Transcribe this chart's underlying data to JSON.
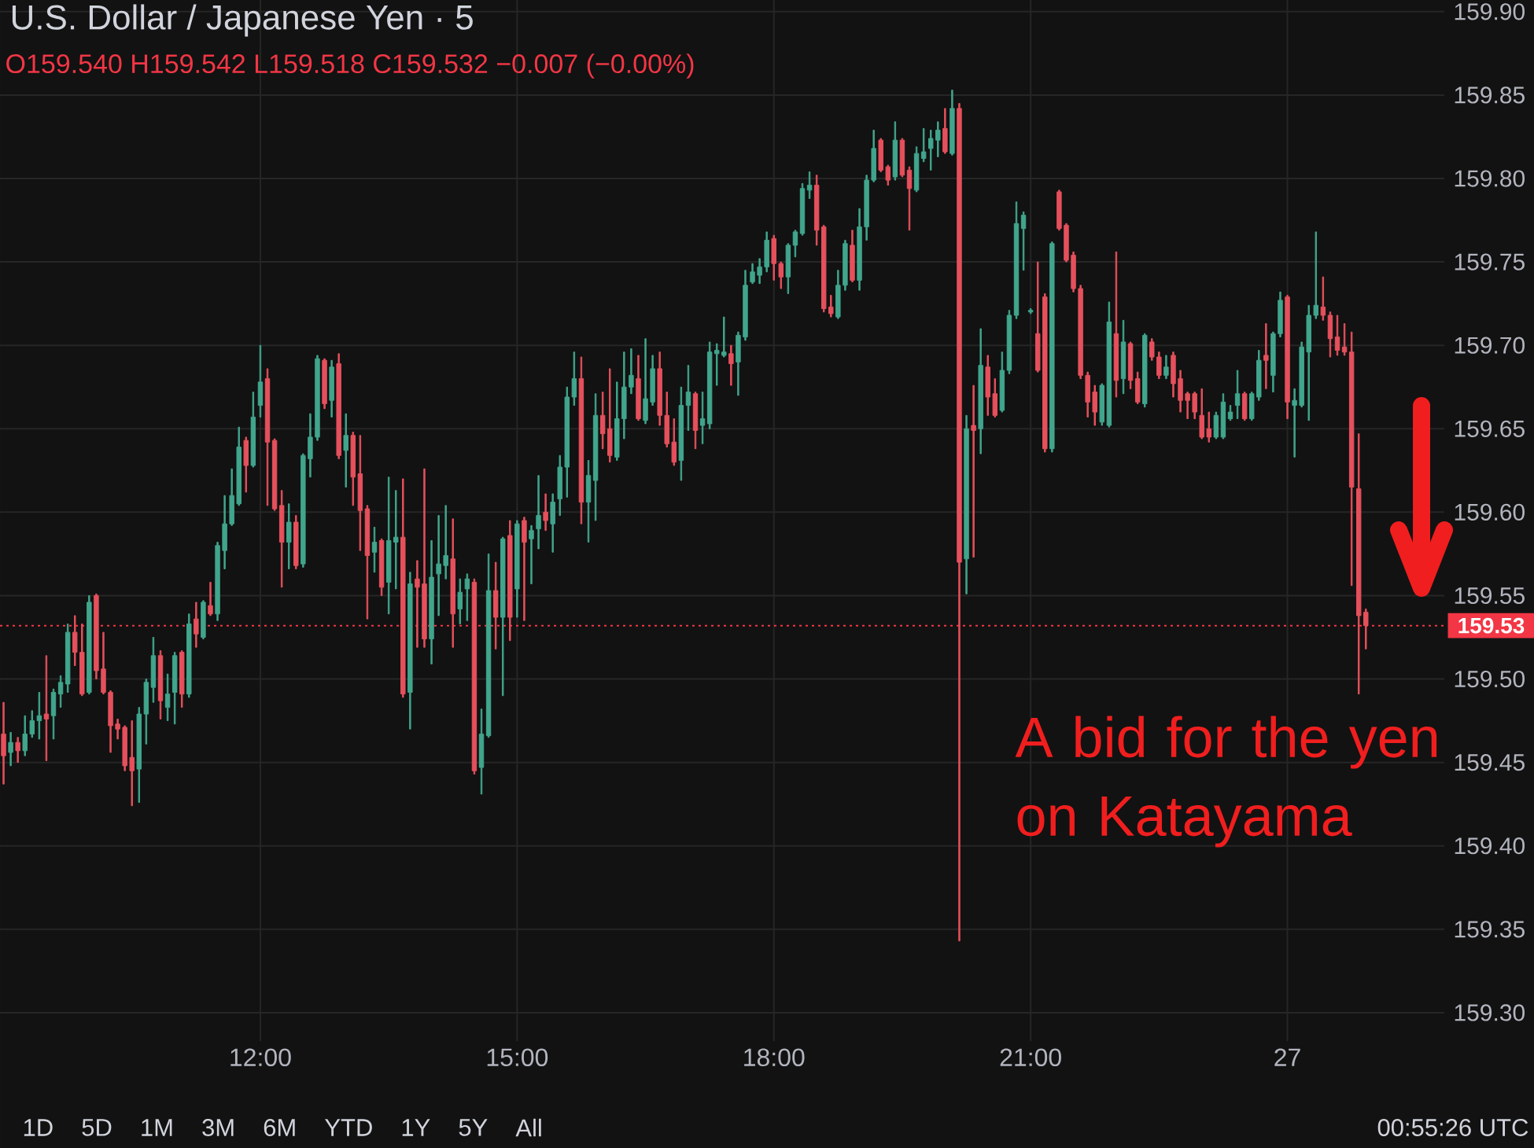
{
  "chart_data": {
    "type": "candlestick",
    "title": "U.S. Dollar / Japanese Yen · 5",
    "subtitle": "O159.540 H159.542 L159.518 C159.532 −0.007 (−0.00%)",
    "categories": [
      null,
      null,
      null,
      null,
      null,
      null,
      null,
      null,
      null,
      null,
      null,
      null,
      null,
      null,
      null,
      null,
      null,
      null,
      null,
      null,
      null,
      null,
      null,
      null,
      null,
      null,
      null,
      null,
      null,
      null,
      null,
      null,
      null,
      null,
      null,
      null,
      "12:00",
      null,
      null,
      null,
      null,
      null,
      null,
      null,
      null,
      null,
      null,
      null,
      null,
      null,
      null,
      null,
      null,
      null,
      null,
      null,
      null,
      null,
      null,
      null,
      null,
      null,
      null,
      null,
      null,
      null,
      null,
      null,
      null,
      null,
      null,
      null,
      "15:00",
      null,
      null,
      null,
      null,
      null,
      null,
      null,
      null,
      null,
      null,
      null,
      null,
      null,
      null,
      null,
      null,
      null,
      null,
      null,
      null,
      null,
      null,
      null,
      null,
      null,
      null,
      null,
      null,
      null,
      null,
      null,
      null,
      null,
      null,
      null,
      "18:00",
      null,
      null,
      null,
      null,
      null,
      null,
      null,
      null,
      null,
      null,
      null,
      null,
      null,
      null,
      null,
      null,
      null,
      null,
      null,
      null,
      null,
      null,
      null,
      null,
      null,
      null,
      null,
      null,
      null,
      null,
      null,
      null,
      null,
      null,
      null,
      "21:00",
      null,
      null,
      null,
      null,
      null,
      null,
      null,
      null,
      null,
      null,
      null,
      null,
      null,
      null,
      null,
      null,
      null,
      null,
      null,
      null,
      null,
      null,
      null,
      null,
      null,
      null,
      null,
      null,
      null,
      null,
      null,
      null,
      null,
      null,
      null,
      "27",
      null,
      null,
      null,
      null,
      null,
      null,
      null,
      null,
      null,
      null,
      null
    ],
    "ohlc": [
      [
        159.467,
        159.486,
        159.437,
        159.454
      ],
      [
        159.456,
        159.468,
        159.448,
        159.462
      ],
      [
        159.462,
        159.465,
        159.45,
        159.457
      ],
      [
        159.457,
        159.478,
        159.454,
        159.467
      ],
      [
        159.467,
        159.481,
        159.465,
        159.475
      ],
      [
        159.475,
        159.492,
        159.464,
        159.478
      ],
      [
        159.479,
        159.514,
        159.451,
        159.476
      ],
      [
        159.478,
        159.494,
        159.464,
        159.492
      ],
      [
        159.491,
        159.502,
        159.483,
        159.498
      ],
      [
        159.497,
        159.533,
        159.492,
        159.528
      ],
      [
        159.528,
        159.538,
        159.508,
        159.516
      ],
      [
        159.516,
        159.533,
        159.49,
        159.491
      ],
      [
        159.492,
        159.55,
        159.491,
        159.546
      ],
      [
        159.55,
        159.551,
        159.5,
        159.505
      ],
      [
        159.506,
        159.528,
        159.491,
        159.492
      ],
      [
        159.492,
        159.493,
        159.456,
        159.472
      ],
      [
        159.473,
        159.476,
        159.464,
        159.47
      ],
      [
        159.471,
        159.472,
        159.445,
        159.448
      ],
      [
        159.453,
        159.475,
        159.424,
        159.445
      ],
      [
        159.446,
        159.483,
        159.426,
        159.479
      ],
      [
        159.479,
        159.5,
        159.461,
        159.498
      ],
      [
        159.495,
        159.525,
        159.486,
        159.514
      ],
      [
        159.514,
        159.517,
        159.476,
        159.487
      ],
      [
        159.483,
        159.503,
        159.475,
        159.491
      ],
      [
        159.492,
        159.516,
        159.473,
        159.514
      ],
      [
        159.516,
        159.517,
        159.483,
        159.491
      ],
      [
        159.491,
        159.539,
        159.489,
        159.533
      ],
      [
        159.536,
        159.546,
        159.519,
        159.527
      ],
      [
        159.525,
        159.547,
        159.524,
        159.546
      ],
      [
        159.544,
        159.558,
        159.538,
        159.539
      ],
      [
        159.539,
        159.582,
        159.535,
        159.58
      ],
      [
        159.577,
        159.61,
        159.566,
        159.593
      ],
      [
        159.593,
        159.626,
        159.592,
        159.61
      ],
      [
        159.605,
        159.651,
        159.604,
        159.639
      ],
      [
        159.643,
        159.645,
        159.612,
        159.628
      ],
      [
        159.628,
        159.672,
        159.627,
        159.657
      ],
      [
        159.664,
        159.7,
        159.657,
        159.678
      ],
      [
        159.68,
        159.686,
        159.604,
        159.642
      ],
      [
        159.643,
        159.644,
        159.601,
        159.602
      ],
      [
        159.604,
        159.613,
        159.555,
        159.582
      ],
      [
        159.582,
        159.605,
        159.566,
        159.594
      ],
      [
        159.594,
        159.598,
        159.566,
        159.568
      ],
      [
        159.569,
        159.635,
        159.567,
        159.634
      ],
      [
        159.632,
        159.659,
        159.621,
        159.645
      ],
      [
        159.645,
        159.694,
        159.643,
        159.692
      ],
      [
        159.691,
        159.692,
        159.662,
        159.665
      ],
      [
        159.667,
        159.691,
        159.657,
        159.687
      ],
      [
        159.689,
        159.695,
        159.632,
        159.634
      ],
      [
        159.637,
        159.659,
        159.615,
        159.646
      ],
      [
        159.646,
        159.648,
        159.604,
        159.621
      ],
      [
        159.623,
        159.646,
        159.577,
        159.601
      ],
      [
        159.602,
        159.604,
        159.536,
        159.574
      ],
      [
        159.576,
        159.591,
        159.564,
        159.582
      ],
      [
        159.583,
        159.584,
        159.55,
        159.555
      ],
      [
        159.558,
        159.621,
        159.539,
        159.583
      ],
      [
        159.582,
        159.613,
        159.554,
        159.585
      ],
      [
        159.585,
        159.62,
        159.489,
        159.491
      ],
      [
        159.492,
        159.564,
        159.47,
        159.557
      ],
      [
        159.56,
        159.571,
        159.519,
        159.555
      ],
      [
        159.557,
        159.626,
        159.519,
        159.524
      ],
      [
        159.524,
        159.583,
        159.509,
        159.561
      ],
      [
        159.563,
        159.598,
        159.538,
        159.569
      ],
      [
        159.568,
        159.604,
        159.56,
        159.574
      ],
      [
        159.572,
        159.596,
        159.519,
        159.539
      ],
      [
        159.542,
        159.56,
        159.533,
        159.552
      ],
      [
        159.554,
        159.563,
        159.535,
        159.56
      ],
      [
        159.558,
        159.56,
        159.443,
        159.445
      ],
      [
        159.447,
        159.482,
        159.431,
        159.467
      ],
      [
        159.466,
        159.575,
        159.465,
        159.553
      ],
      [
        159.553,
        159.57,
        159.518,
        159.537
      ],
      [
        159.537,
        159.585,
        159.49,
        159.584
      ],
      [
        159.586,
        159.595,
        159.523,
        159.537
      ],
      [
        159.554,
        159.595,
        159.537,
        159.593
      ],
      [
        159.595,
        159.597,
        159.535,
        159.582
      ],
      [
        159.584,
        159.592,
        159.557,
        159.589
      ],
      [
        159.59,
        159.622,
        159.578,
        159.598
      ],
      [
        159.6,
        159.611,
        159.589,
        159.595
      ],
      [
        159.593,
        159.611,
        159.576,
        159.606
      ],
      [
        159.608,
        159.634,
        159.598,
        159.627
      ],
      [
        159.627,
        159.675,
        159.609,
        159.669
      ],
      [
        159.669,
        159.696,
        159.664,
        159.68
      ],
      [
        159.68,
        159.693,
        159.593,
        159.606
      ],
      [
        159.606,
        159.631,
        159.582,
        159.622
      ],
      [
        159.619,
        159.671,
        159.595,
        159.658
      ],
      [
        159.658,
        159.672,
        159.638,
        159.647
      ],
      [
        159.65,
        159.686,
        159.63,
        159.634
      ],
      [
        159.633,
        159.678,
        159.631,
        159.656
      ],
      [
        159.656,
        159.696,
        159.644,
        159.675
      ],
      [
        159.675,
        159.698,
        159.671,
        159.682
      ],
      [
        159.68,
        159.694,
        159.655,
        159.656
      ],
      [
        159.655,
        159.704,
        159.653,
        159.668
      ],
      [
        159.666,
        159.694,
        159.664,
        159.686
      ],
      [
        159.686,
        159.696,
        159.652,
        159.658
      ],
      [
        159.658,
        159.672,
        159.639,
        159.641
      ],
      [
        159.642,
        159.656,
        159.628,
        159.63
      ],
      [
        159.631,
        159.675,
        159.619,
        159.664
      ],
      [
        159.664,
        159.688,
        159.649,
        159.672
      ],
      [
        159.671,
        159.672,
        159.638,
        159.649
      ],
      [
        159.652,
        159.672,
        159.641,
        159.656
      ],
      [
        159.653,
        159.702,
        159.65,
        159.696
      ],
      [
        159.695,
        159.701,
        159.676,
        159.697
      ],
      [
        159.694,
        159.717,
        159.693,
        159.696
      ],
      [
        159.695,
        159.7,
        159.676,
        159.689
      ],
      [
        159.69,
        159.708,
        159.67,
        159.706
      ],
      [
        159.705,
        159.745,
        159.703,
        159.736
      ],
      [
        159.738,
        159.749,
        159.737,
        159.744
      ],
      [
        159.742,
        159.752,
        159.737,
        159.747
      ],
      [
        159.747,
        159.768,
        159.744,
        159.763
      ],
      [
        159.764,
        159.766,
        159.739,
        159.749
      ],
      [
        159.749,
        159.75,
        159.734,
        159.741
      ],
      [
        159.741,
        159.761,
        159.731,
        159.76
      ],
      [
        159.76,
        159.769,
        159.753,
        159.768
      ],
      [
        159.767,
        159.797,
        159.766,
        159.794
      ],
      [
        159.793,
        159.804,
        159.788,
        159.796
      ],
      [
        159.796,
        159.802,
        159.76,
        159.769
      ],
      [
        159.771,
        159.772,
        159.72,
        159.722
      ],
      [
        159.723,
        159.73,
        159.717,
        159.719
      ],
      [
        159.717,
        159.745,
        159.716,
        159.736
      ],
      [
        159.736,
        159.763,
        159.733,
        159.761
      ],
      [
        159.76,
        159.769,
        159.738,
        159.739
      ],
      [
        159.739,
        159.782,
        159.733,
        159.771
      ],
      [
        159.771,
        159.802,
        159.763,
        159.799
      ],
      [
        159.799,
        159.829,
        159.798,
        159.818
      ],
      [
        159.823,
        159.824,
        159.804,
        159.805
      ],
      [
        159.807,
        159.808,
        159.796,
        159.799
      ],
      [
        159.801,
        159.834,
        159.799,
        159.823
      ],
      [
        159.823,
        159.824,
        159.801,
        159.802
      ],
      [
        159.805,
        159.807,
        159.769,
        159.794
      ],
      [
        159.793,
        159.819,
        159.792,
        159.815
      ],
      [
        159.812,
        159.83,
        159.81,
        159.816
      ],
      [
        159.818,
        159.829,
        159.805,
        159.824
      ],
      [
        159.823,
        159.834,
        159.813,
        159.829
      ],
      [
        159.83,
        159.842,
        159.815,
        159.816
      ],
      [
        159.815,
        159.853,
        159.814,
        159.842
      ],
      [
        159.842,
        159.845,
        159.343,
        159.57
      ],
      [
        159.572,
        159.658,
        159.551,
        159.65
      ],
      [
        159.652,
        159.676,
        159.573,
        159.649
      ],
      [
        159.65,
        159.71,
        159.635,
        159.688
      ],
      [
        159.687,
        159.694,
        159.658,
        159.669
      ],
      [
        159.671,
        159.68,
        159.657,
        159.658
      ],
      [
        159.661,
        159.696,
        159.66,
        159.685
      ],
      [
        159.685,
        159.721,
        159.683,
        159.718
      ],
      [
        159.718,
        159.786,
        159.716,
        159.773
      ],
      [
        159.77,
        159.78,
        159.745,
        159.778
      ],
      [
        159.72,
        159.722,
        159.719,
        159.721
      ],
      [
        159.707,
        159.75,
        159.684,
        159.685
      ],
      [
        159.729,
        159.731,
        159.636,
        159.638
      ],
      [
        159.638,
        159.762,
        159.636,
        159.761
      ],
      [
        159.792,
        159.793,
        159.769,
        159.77
      ],
      [
        159.772,
        159.773,
        159.75,
        159.751
      ],
      [
        159.754,
        159.756,
        159.732,
        159.734
      ],
      [
        159.734,
        159.736,
        159.68,
        159.682
      ],
      [
        159.682,
        159.684,
        159.657,
        159.666
      ],
      [
        159.672,
        159.676,
        159.652,
        159.66
      ],
      [
        159.654,
        159.677,
        159.652,
        159.676
      ],
      [
        159.652,
        159.726,
        159.651,
        159.714
      ],
      [
        159.707,
        159.756,
        159.669,
        159.679
      ],
      [
        159.68,
        159.715,
        159.671,
        159.702
      ],
      [
        159.701,
        159.702,
        159.674,
        159.679
      ],
      [
        159.68,
        159.684,
        159.665,
        159.666
      ],
      [
        159.665,
        159.707,
        159.663,
        159.706
      ],
      [
        159.702,
        159.704,
        159.691,
        159.693
      ],
      [
        159.693,
        159.696,
        159.68,
        159.682
      ],
      [
        159.682,
        159.694,
        159.68,
        159.687
      ],
      [
        159.694,
        159.696,
        159.669,
        159.677
      ],
      [
        159.68,
        159.685,
        159.66,
        159.667
      ],
      [
        159.671,
        159.672,
        159.656,
        159.667
      ],
      [
        159.671,
        159.672,
        159.656,
        159.66
      ],
      [
        159.658,
        159.674,
        159.644,
        159.645
      ],
      [
        159.65,
        159.66,
        159.642,
        159.645
      ],
      [
        159.645,
        159.66,
        159.644,
        159.658
      ],
      [
        159.645,
        159.671,
        159.644,
        159.666
      ],
      [
        159.656,
        159.664,
        159.655,
        159.66
      ],
      [
        159.664,
        159.685,
        159.656,
        159.671
      ],
      [
        159.671,
        159.672,
        159.655,
        159.656
      ],
      [
        159.656,
        159.672,
        159.655,
        159.671
      ],
      [
        159.669,
        159.697,
        159.667,
        159.691
      ],
      [
        159.694,
        159.713,
        159.674,
        159.691
      ],
      [
        159.682,
        159.708,
        159.672,
        159.707
      ],
      [
        159.707,
        159.732,
        159.705,
        159.727
      ],
      [
        159.729,
        159.73,
        159.656,
        159.666
      ],
      [
        159.664,
        159.674,
        159.633,
        159.667
      ],
      [
        159.664,
        159.702,
        159.663,
        159.699
      ],
      [
        159.696,
        159.724,
        159.655,
        159.718
      ],
      [
        159.718,
        159.768,
        159.716,
        159.724
      ],
      [
        159.723,
        159.741,
        159.715,
        159.718
      ],
      [
        159.718,
        159.72,
        159.693,
        159.704
      ],
      [
        159.705,
        159.718,
        159.694,
        159.697
      ],
      [
        159.699,
        159.713,
        159.694,
        159.696
      ],
      [
        159.696,
        159.708,
        159.556,
        159.615
      ],
      [
        159.614,
        159.647,
        159.491,
        159.538
      ],
      [
        159.54,
        159.542,
        159.518,
        159.532
      ]
    ],
    "colors": [
      "#e5505c",
      "#40a58c",
      "#e5505c",
      "#40a58c",
      "#40a58c",
      "#40a58c",
      "#e5505c",
      "#40a58c",
      "#40a58c",
      "#40a58c",
      "#e5505c",
      "#e5505c",
      "#40a58c",
      "#e5505c",
      "#e5505c",
      "#e5505c",
      "#e5505c",
      "#e5505c",
      "#e5505c",
      "#40a58c",
      "#40a58c",
      "#40a58c",
      "#e5505c",
      "#40a58c",
      "#40a58c",
      "#e5505c",
      "#40a58c",
      "#e5505c",
      "#40a58c",
      "#e5505c",
      "#40a58c",
      "#40a58c",
      "#40a58c",
      "#40a58c",
      "#e5505c",
      "#40a58c",
      "#40a58c",
      "#e5505c",
      "#e5505c",
      "#e5505c",
      "#40a58c",
      "#e5505c",
      "#40a58c",
      "#40a58c",
      "#40a58c",
      "#e5505c",
      "#40a58c",
      "#e5505c",
      "#40a58c",
      "#e5505c",
      "#e5505c",
      "#e5505c",
      "#40a58c",
      "#e5505c",
      "#40a58c",
      "#40a58c",
      "#e5505c",
      "#40a58c",
      "#e5505c",
      "#e5505c",
      "#40a58c",
      "#40a58c",
      "#40a58c",
      "#e5505c",
      "#40a58c",
      "#40a58c",
      "#e5505c",
      "#40a58c",
      "#40a58c",
      "#e5505c",
      "#40a58c",
      "#e5505c",
      "#40a58c",
      "#e5505c",
      "#40a58c",
      "#40a58c",
      "#e5505c",
      "#40a58c",
      "#40a58c",
      "#40a58c",
      "#40a58c",
      "#e5505c",
      "#40a58c",
      "#40a58c",
      "#e5505c",
      "#e5505c",
      "#40a58c",
      "#40a58c",
      "#40a58c",
      "#e5505c",
      "#40a58c",
      "#40a58c",
      "#e5505c",
      "#e5505c",
      "#e5505c",
      "#40a58c",
      "#40a58c",
      "#e5505c",
      "#40a58c",
      "#40a58c",
      "#40a58c",
      "#40a58c",
      "#e5505c",
      "#40a58c",
      "#40a58c",
      "#40a58c",
      "#40a58c",
      "#40a58c",
      "#e5505c",
      "#e5505c",
      "#40a58c",
      "#40a58c",
      "#40a58c",
      "#40a58c",
      "#e5505c",
      "#e5505c",
      "#e5505c",
      "#40a58c",
      "#40a58c",
      "#e5505c",
      "#40a58c",
      "#40a58c",
      "#40a58c",
      "#e5505c",
      "#e5505c",
      "#40a58c",
      "#e5505c",
      "#e5505c",
      "#40a58c",
      "#40a58c",
      "#40a58c",
      "#40a58c",
      "#e5505c",
      "#40a58c",
      "#e5505c",
      "#40a58c",
      "#e5505c",
      "#40a58c",
      "#e5505c",
      "#e5505c",
      "#40a58c",
      "#40a58c",
      "#40a58c",
      "#40a58c",
      "#40a58c",
      "#e5505c",
      "#e5505c",
      "#40a58c",
      "#e5505c",
      "#e5505c",
      "#e5505c",
      "#e5505c",
      "#e5505c",
      "#e5505c",
      "#40a58c",
      "#40a58c",
      "#e5505c",
      "#40a58c",
      "#e5505c",
      "#e5505c",
      "#40a58c",
      "#e5505c",
      "#e5505c",
      "#40a58c",
      "#e5505c",
      "#e5505c",
      "#e5505c",
      "#e5505c",
      "#e5505c",
      "#e5505c",
      "#40a58c",
      "#40a58c",
      "#40a58c",
      "#40a58c",
      "#e5505c",
      "#40a58c",
      "#40a58c",
      "#e5505c",
      "#40a58c",
      "#40a58c",
      "#e5505c",
      "#40a58c",
      "#40a58c",
      "#40a58c",
      "#40a58c",
      "#e5505c",
      "#e5505c",
      "#e5505c",
      "#e5505c",
      "#e5505c",
      "#e5505c",
      "#e5505c"
    ],
    "ylim": [
      159.283,
      159.907
    ],
    "yticks": [
      {
        "value": 159.3,
        "label": "159.30"
      },
      {
        "value": 159.35,
        "label": "159.35"
      },
      {
        "value": 159.4,
        "label": "159.40"
      },
      {
        "value": 159.45,
        "label": "159.45"
      },
      {
        "value": 159.5,
        "label": "159.50"
      },
      {
        "value": 159.55,
        "label": "159.55"
      },
      {
        "value": 159.6,
        "label": "159.60"
      },
      {
        "value": 159.65,
        "label": "159.65"
      },
      {
        "value": 159.7,
        "label": "159.70"
      },
      {
        "value": 159.75,
        "label": "159.75"
      },
      {
        "value": 159.8,
        "label": "159.80"
      },
      {
        "value": 159.85,
        "label": "159.85"
      },
      {
        "value": 159.9,
        "label": "159.90"
      }
    ],
    "grid": true,
    "ref_lines": [
      {
        "axis": "y",
        "value": 159.532,
        "label": "159.53",
        "color": "#f23645",
        "line_style": "dotted"
      }
    ],
    "annotations": [
      "A bid for the yen on Katayama",
      "1D",
      "5D",
      "1M",
      "3M",
      "6M",
      "YTD",
      "1Y",
      "5Y",
      "All",
      "00:55:26 UTC"
    ]
  }
}
